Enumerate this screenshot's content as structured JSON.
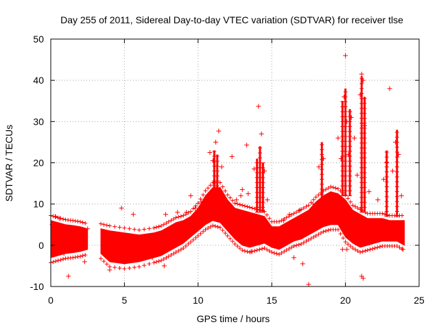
{
  "chart_data": {
    "type": "scatter",
    "title": "Day 255 of 2011, Sidereal Day-to-day VTEC variation (SDTVAR) for receiver tlse",
    "xlabel": "GPS time / hours",
    "ylabel": "SDTVAR / TECUs",
    "xlim": [
      0,
      25
    ],
    "ylim": [
      -10,
      50
    ],
    "xticks": [
      0,
      5,
      10,
      15,
      20,
      25
    ],
    "yticks": [
      -10,
      0,
      10,
      20,
      30,
      40,
      50
    ],
    "grid": true,
    "marker": "+",
    "series": [
      {
        "name": "SDTVAR",
        "color": "#ff0000",
        "band": {
          "segments": [
            [
              [
                0.0,
                -3,
                6
              ],
              [
                0.5,
                -2.5,
                5.5
              ],
              [
                1.0,
                -2,
                5
              ],
              [
                1.5,
                -1.8,
                4.8
              ],
              [
                2.0,
                -1.5,
                4.5
              ],
              [
                2.5,
                -1,
                4
              ]
            ],
            [
              [
                3.4,
                -2,
                4
              ],
              [
                4.0,
                -4,
                3.5
              ],
              [
                5.0,
                -4.5,
                3
              ],
              [
                6.0,
                -4,
                2.5
              ],
              [
                7.0,
                -3,
                3
              ],
              [
                7.5,
                -2.5,
                3.5
              ],
              [
                8.0,
                -1.5,
                4.5
              ],
              [
                8.5,
                -0.5,
                5.5
              ],
              [
                9.0,
                0.5,
                6
              ],
              [
                9.5,
                2,
                7
              ],
              [
                10.0,
                3.5,
                9
              ],
              [
                10.5,
                5,
                12
              ],
              [
                11.0,
                6,
                14
              ],
              [
                11.5,
                5.5,
                14
              ],
              [
                12.0,
                3.5,
                11
              ],
              [
                12.5,
                1.5,
                9
              ],
              [
                13.0,
                0,
                8.5
              ],
              [
                13.5,
                -0.5,
                8
              ],
              [
                14.0,
                0,
                7.5
              ],
              [
                14.5,
                0.5,
                7
              ],
              [
                15.0,
                -0.5,
                4.5
              ],
              [
                15.5,
                -1,
                4.5
              ],
              [
                16.0,
                0,
                5.5
              ],
              [
                16.5,
                1,
                6.5
              ],
              [
                17.0,
                1.5,
                7.5
              ],
              [
                17.5,
                2.5,
                8.5
              ],
              [
                18.0,
                3.5,
                10.5
              ],
              [
                18.5,
                4.5,
                12
              ],
              [
                19.0,
                5,
                13
              ],
              [
                19.5,
                5,
                12.5
              ],
              [
                20.0,
                2,
                11
              ],
              [
                20.5,
                0.5,
                8.5
              ],
              [
                21.0,
                -0.5,
                7.5
              ],
              [
                21.5,
                0,
                6.5
              ],
              [
                22.0,
                0.5,
                6.5
              ],
              [
                22.5,
                1,
                6.5
              ],
              [
                23.0,
                1,
                6
              ],
              [
                23.5,
                1,
                6
              ],
              [
                24.0,
                0,
                6
              ]
            ]
          ]
        },
        "spikes": [
          {
            "x": 11.1,
            "y0": 12,
            "y1": 23
          },
          {
            "x": 11.3,
            "y0": 12,
            "y1": 22
          },
          {
            "x": 14.0,
            "y0": 8,
            "y1": 21
          },
          {
            "x": 14.2,
            "y0": 8,
            "y1": 24
          },
          {
            "x": 14.4,
            "y0": 8,
            "y1": 20
          },
          {
            "x": 18.4,
            "y0": 10,
            "y1": 25
          },
          {
            "x": 19.8,
            "y0": 12,
            "y1": 35
          },
          {
            "x": 20.0,
            "y0": 12,
            "y1": 38
          },
          {
            "x": 20.3,
            "y0": 12,
            "y1": 33
          },
          {
            "x": 21.1,
            "y0": 8,
            "y1": 41
          },
          {
            "x": 21.3,
            "y0": 8,
            "y1": 36
          },
          {
            "x": 22.8,
            "y0": 7,
            "y1": 23
          },
          {
            "x": 23.5,
            "y0": 7,
            "y1": 28
          }
        ],
        "points": [
          {
            "x": 0.1,
            "y": 5
          },
          {
            "x": 0.3,
            "y": 7
          },
          {
            "x": 0.6,
            "y": 6.5
          },
          {
            "x": 0.9,
            "y": -2
          },
          {
            "x": 1.2,
            "y": -7.5
          },
          {
            "x": 2.3,
            "y": -4
          },
          {
            "x": 2.5,
            "y": 4
          },
          {
            "x": 3.8,
            "y": 2
          },
          {
            "x": 4.0,
            "y": -6
          },
          {
            "x": 4.6,
            "y": 1.5
          },
          {
            "x": 4.8,
            "y": 9
          },
          {
            "x": 5.6,
            "y": 7.5
          },
          {
            "x": 6.9,
            "y": -3
          },
          {
            "x": 7.7,
            "y": -5
          },
          {
            "x": 7.8,
            "y": 7.5
          },
          {
            "x": 8.6,
            "y": 8
          },
          {
            "x": 9.2,
            "y": 8
          },
          {
            "x": 9.8,
            "y": 9
          },
          {
            "x": 10.8,
            "y": 22.5
          },
          {
            "x": 11.0,
            "y": 20.5
          },
          {
            "x": 11.2,
            "y": 25
          },
          {
            "x": 11.4,
            "y": 27.7
          },
          {
            "x": 11.6,
            "y": 19
          },
          {
            "x": 12.3,
            "y": 21.5
          },
          {
            "x": 12.6,
            "y": 11
          },
          {
            "x": 13.0,
            "y": 13.5
          },
          {
            "x": 13.3,
            "y": 24.3
          },
          {
            "x": 13.4,
            "y": 12.5
          },
          {
            "x": 13.8,
            "y": 18.5
          },
          {
            "x": 14.1,
            "y": 33.7
          },
          {
            "x": 14.3,
            "y": 27
          },
          {
            "x": 14.5,
            "y": 18
          },
          {
            "x": 14.7,
            "y": 11
          },
          {
            "x": 13.6,
            "y": -1.5
          },
          {
            "x": 16.2,
            "y": 7.5
          },
          {
            "x": 16.5,
            "y": -3
          },
          {
            "x": 16.9,
            "y": 8.5
          },
          {
            "x": 17.1,
            "y": -4.5
          },
          {
            "x": 17.5,
            "y": -9.5
          },
          {
            "x": 17.8,
            "y": 10
          },
          {
            "x": 18.0,
            "y": 6.5
          },
          {
            "x": 18.2,
            "y": 19
          },
          {
            "x": 18.5,
            "y": 21
          },
          {
            "x": 18.7,
            "y": 11
          },
          {
            "x": 19.5,
            "y": 26
          },
          {
            "x": 19.7,
            "y": 21
          },
          {
            "x": 19.9,
            "y": 36
          },
          {
            "x": 20.0,
            "y": 46
          },
          {
            "x": 20.1,
            "y": 30
          },
          {
            "x": 20.2,
            "y": 22
          },
          {
            "x": 20.4,
            "y": 31
          },
          {
            "x": 20.6,
            "y": 26
          },
          {
            "x": 20.8,
            "y": 17
          },
          {
            "x": 21.0,
            "y": 36.5
          },
          {
            "x": 21.1,
            "y": 41.5
          },
          {
            "x": 21.2,
            "y": 40
          },
          {
            "x": 21.3,
            "y": 29
          },
          {
            "x": 21.1,
            "y": -7.5
          },
          {
            "x": 21.2,
            "y": -8
          },
          {
            "x": 21.6,
            "y": 13
          },
          {
            "x": 22.2,
            "y": 11
          },
          {
            "x": 22.6,
            "y": 16
          },
          {
            "x": 22.8,
            "y": 20
          },
          {
            "x": 23.0,
            "y": 38
          },
          {
            "x": 23.2,
            "y": 18
          },
          {
            "x": 23.4,
            "y": 25
          },
          {
            "x": 23.6,
            "y": 22
          },
          {
            "x": 23.8,
            "y": 12
          },
          {
            "x": 23.9,
            "y": -1
          },
          {
            "x": 19.8,
            "y": -1
          },
          {
            "x": 20.1,
            "y": -1
          },
          {
            "x": 12.9,
            "y": 12
          },
          {
            "x": 15.8,
            "y": 6
          },
          {
            "x": 10.2,
            "y": 10.5
          },
          {
            "x": 9.5,
            "y": 12
          }
        ]
      }
    ]
  }
}
